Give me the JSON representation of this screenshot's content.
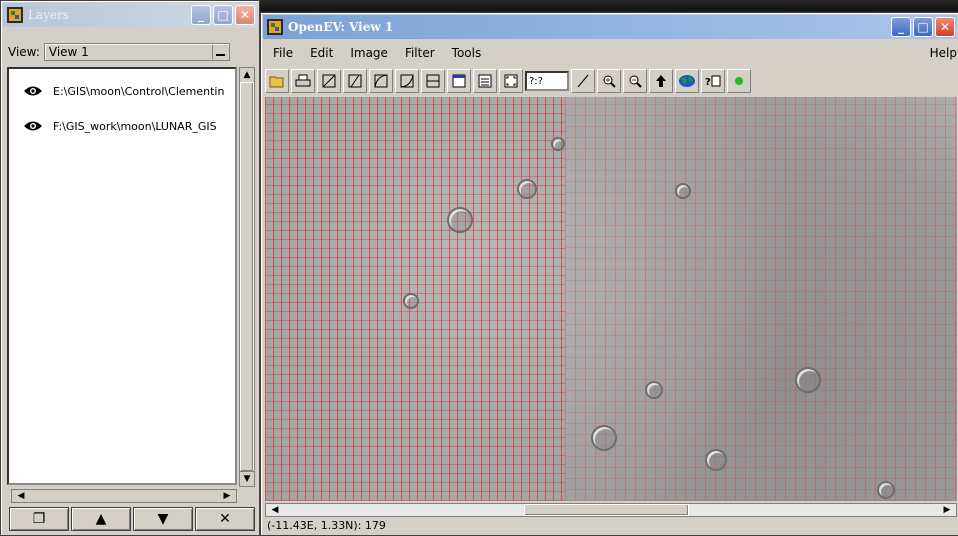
{
  "layers_window": {
    "title": "Layers",
    "view_label": "View:",
    "view_selected": "View 1",
    "layers": [
      {
        "name": "E:\\GIS\\moon\\Control\\Clementin"
      },
      {
        "name": "F:\\GIS_work\\moon\\LUNAR_GIS"
      }
    ],
    "buttons": [
      {
        "icon": "new-layer-icon",
        "glyph": "❐"
      },
      {
        "icon": "move-up-icon",
        "glyph": "▲"
      },
      {
        "icon": "move-down-icon",
        "glyph": "▼"
      },
      {
        "icon": "delete-icon",
        "glyph": "✕"
      }
    ]
  },
  "main_window": {
    "title": "OpenEV: View 1",
    "menu": [
      "File",
      "Edit",
      "Image",
      "Filter",
      "Tools"
    ],
    "help": "Help",
    "zoom_entry": "?:?",
    "status": "(-11.43E, 1.33N): 179"
  },
  "colors": {
    "grid_overlay": "#dc1e1e",
    "active_title": "#7aa2d6",
    "window_face": "#d4d0c8",
    "green_indicator": "#16c316"
  }
}
